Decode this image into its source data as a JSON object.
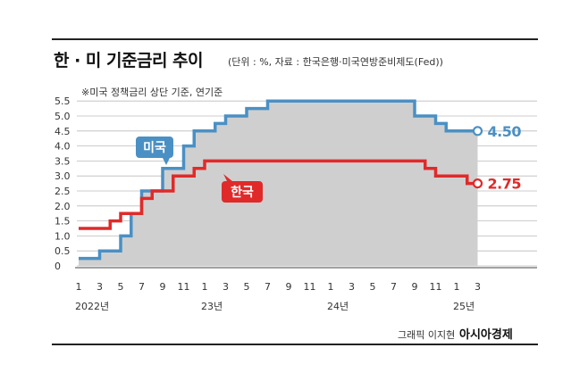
{
  "header": {
    "title": "한 · 미 기준금리 추이",
    "subtitle": "(단위 : %, 자료 : 한국은행·미국연방준비제도(Fed))"
  },
  "footer": {
    "credit": "그래픽 이지현",
    "brand": "아시아경제"
  },
  "colors": {
    "us": "#4a90c4",
    "korea": "#e02a2a",
    "us_fill": "#cfcfcf",
    "grid": "#bbbbbb"
  },
  "chart_data": {
    "type": "line",
    "note": "※미국 정책금리 상단 기준, 연기준",
    "ylim": [
      0,
      5.5
    ],
    "yticks": [
      "0",
      "0.5",
      "1.0",
      "1.5",
      "2.0",
      "2.5",
      "3.0",
      "3.5",
      "4.0",
      "4.5",
      "5.0",
      "5.5"
    ],
    "ytick_values": [
      0,
      0.5,
      1.0,
      1.5,
      2.0,
      2.5,
      3.0,
      3.5,
      4.0,
      4.5,
      5.0,
      5.5
    ],
    "xticks": [
      "1",
      "3",
      "5",
      "7",
      "9",
      "11",
      "1",
      "3",
      "5",
      "7",
      "9",
      "11",
      "1",
      "3",
      "5",
      "7",
      "9",
      "11",
      "1",
      "3"
    ],
    "xtick_index": [
      0,
      2,
      4,
      6,
      8,
      10,
      12,
      14,
      16,
      18,
      20,
      22,
      24,
      26,
      28,
      30,
      32,
      34,
      36,
      38
    ],
    "year_labels": [
      {
        "label": "2022년",
        "index": 0
      },
      {
        "label": "23년",
        "index": 12
      },
      {
        "label": "24년",
        "index": 24
      },
      {
        "label": "25년",
        "index": 36
      }
    ],
    "x": [
      "2022-01",
      "2022-02",
      "2022-03",
      "2022-04",
      "2022-05",
      "2022-06",
      "2022-07",
      "2022-08",
      "2022-09",
      "2022-10",
      "2022-11",
      "2022-12",
      "2023-01",
      "2023-02",
      "2023-03",
      "2023-04",
      "2023-05",
      "2023-06",
      "2023-07",
      "2023-08",
      "2023-09",
      "2023-10",
      "2023-11",
      "2023-12",
      "2024-01",
      "2024-02",
      "2024-03",
      "2024-04",
      "2024-05",
      "2024-06",
      "2024-07",
      "2024-08",
      "2024-09",
      "2024-10",
      "2024-11",
      "2024-12",
      "2025-01",
      "2025-02",
      "2025-03"
    ],
    "series": [
      {
        "name": "미국",
        "end_label": "4.50",
        "color": "#4a90c4",
        "values": [
          0.25,
          0.25,
          0.5,
          0.5,
          1.0,
          1.75,
          2.5,
          2.5,
          3.25,
          3.25,
          4.0,
          4.5,
          4.5,
          4.75,
          5.0,
          5.0,
          5.25,
          5.25,
          5.5,
          5.5,
          5.5,
          5.5,
          5.5,
          5.5,
          5.5,
          5.5,
          5.5,
          5.5,
          5.5,
          5.5,
          5.5,
          5.5,
          5.0,
          5.0,
          4.75,
          4.5,
          4.5,
          4.5,
          4.5
        ]
      },
      {
        "name": "한국",
        "end_label": "2.75",
        "color": "#e02a2a",
        "values": [
          1.25,
          1.25,
          1.25,
          1.5,
          1.75,
          1.75,
          2.25,
          2.5,
          2.5,
          3.0,
          3.0,
          3.25,
          3.5,
          3.5,
          3.5,
          3.5,
          3.5,
          3.5,
          3.5,
          3.5,
          3.5,
          3.5,
          3.5,
          3.5,
          3.5,
          3.5,
          3.5,
          3.5,
          3.5,
          3.5,
          3.5,
          3.5,
          3.5,
          3.25,
          3.0,
          3.0,
          3.0,
          2.75,
          2.75
        ]
      }
    ]
  }
}
